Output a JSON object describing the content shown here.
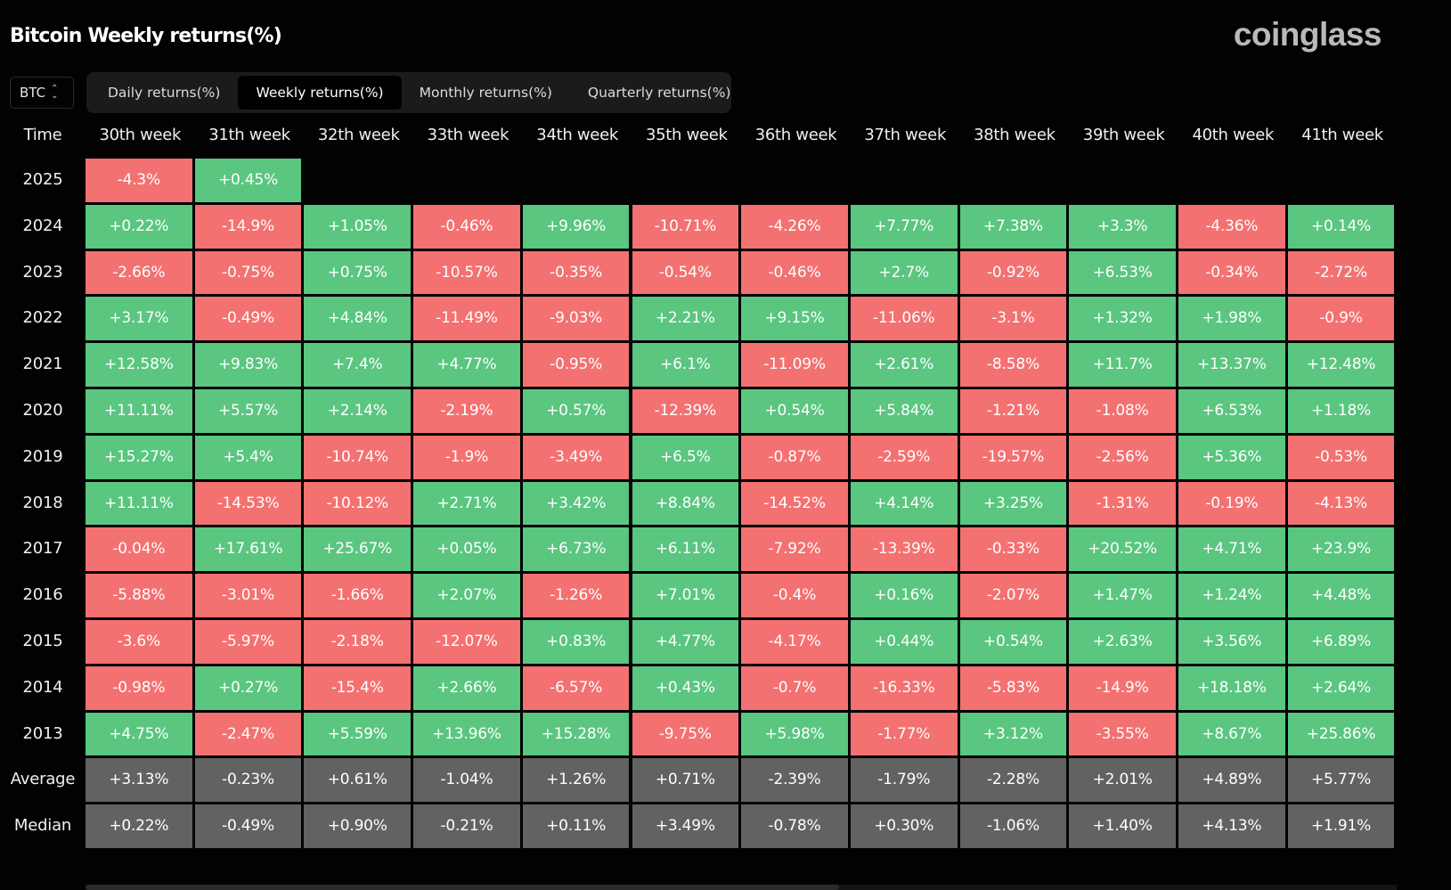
{
  "header": {
    "title": "Bitcoin Weekly returns(%)",
    "logo": "coinglass"
  },
  "coin_select": {
    "value": "BTC",
    "icon": "up-down-chevron-icon"
  },
  "tabs": [
    {
      "label": "Daily returns(%)",
      "active": false
    },
    {
      "label": "Weekly returns(%)",
      "active": true
    },
    {
      "label": "Monthly returns(%)",
      "active": false
    },
    {
      "label": "Quarterly returns(%)",
      "active": false
    }
  ],
  "colors": {
    "positive": "#5ac680",
    "negative": "#f47171",
    "summary": "#626262",
    "background": "#020202"
  },
  "chart_data": {
    "type": "heatmap",
    "title": "Bitcoin Weekly returns(%)",
    "corner_label": "Time",
    "columns": [
      "30th week",
      "31th week",
      "32th week",
      "33th week",
      "34th week",
      "35th week",
      "36th week",
      "37th week",
      "38th week",
      "39th week",
      "40th week",
      "41th week"
    ],
    "rows": [
      {
        "label": "2025",
        "values": [
          "-4.3%",
          "+0.45%",
          null,
          null,
          null,
          null,
          null,
          null,
          null,
          null,
          null,
          null
        ]
      },
      {
        "label": "2024",
        "values": [
          "+0.22%",
          "-14.9%",
          "+1.05%",
          "-0.46%",
          "+9.96%",
          "-10.71%",
          "-4.26%",
          "+7.77%",
          "+7.38%",
          "+3.3%",
          "-4.36%",
          "+0.14%"
        ]
      },
      {
        "label": "2023",
        "values": [
          "-2.66%",
          "-0.75%",
          "+0.75%",
          "-10.57%",
          "-0.35%",
          "-0.54%",
          "-0.46%",
          "+2.7%",
          "-0.92%",
          "+6.53%",
          "-0.34%",
          "-2.72%"
        ]
      },
      {
        "label": "2022",
        "values": [
          "+3.17%",
          "-0.49%",
          "+4.84%",
          "-11.49%",
          "-9.03%",
          "+2.21%",
          "+9.15%",
          "-11.06%",
          "-3.1%",
          "+1.32%",
          "+1.98%",
          "-0.9%"
        ]
      },
      {
        "label": "2021",
        "values": [
          "+12.58%",
          "+9.83%",
          "+7.4%",
          "+4.77%",
          "-0.95%",
          "+6.1%",
          "-11.09%",
          "+2.61%",
          "-8.58%",
          "+11.7%",
          "+13.37%",
          "+12.48%"
        ]
      },
      {
        "label": "2020",
        "values": [
          "+11.11%",
          "+5.57%",
          "+2.14%",
          "-2.19%",
          "+0.57%",
          "-12.39%",
          "+0.54%",
          "+5.84%",
          "-1.21%",
          "-1.08%",
          "+6.53%",
          "+1.18%"
        ]
      },
      {
        "label": "2019",
        "values": [
          "+15.27%",
          "+5.4%",
          "-10.74%",
          "-1.9%",
          "-3.49%",
          "+6.5%",
          "-0.87%",
          "-2.59%",
          "-19.57%",
          "-2.56%",
          "+5.36%",
          "-0.53%"
        ]
      },
      {
        "label": "2018",
        "values": [
          "+11.11%",
          "-14.53%",
          "-10.12%",
          "+2.71%",
          "+3.42%",
          "+8.84%",
          "-14.52%",
          "+4.14%",
          "+3.25%",
          "-1.31%",
          "-0.19%",
          "-4.13%"
        ]
      },
      {
        "label": "2017",
        "values": [
          "-0.04%",
          "+17.61%",
          "+25.67%",
          "+0.05%",
          "+6.73%",
          "+6.11%",
          "-7.92%",
          "-13.39%",
          "-0.33%",
          "+20.52%",
          "+4.71%",
          "+23.9%"
        ]
      },
      {
        "label": "2016",
        "values": [
          "-5.88%",
          "-3.01%",
          "-1.66%",
          "+2.07%",
          "-1.26%",
          "+7.01%",
          "-0.4%",
          "+0.16%",
          "-2.07%",
          "+1.47%",
          "+1.24%",
          "+4.48%"
        ]
      },
      {
        "label": "2015",
        "values": [
          "-3.6%",
          "-5.97%",
          "-2.18%",
          "-12.07%",
          "+0.83%",
          "+4.77%",
          "-4.17%",
          "+0.44%",
          "+0.54%",
          "+2.63%",
          "+3.56%",
          "+6.89%"
        ]
      },
      {
        "label": "2014",
        "values": [
          "-0.98%",
          "+0.27%",
          "-15.4%",
          "+2.66%",
          "-6.57%",
          "+0.43%",
          "-0.7%",
          "-16.33%",
          "-5.83%",
          "-14.9%",
          "+18.18%",
          "+2.64%"
        ]
      },
      {
        "label": "2013",
        "values": [
          "+4.75%",
          "-2.47%",
          "+5.59%",
          "+13.96%",
          "+15.28%",
          "-9.75%",
          "+5.98%",
          "-1.77%",
          "+3.12%",
          "-3.55%",
          "+8.67%",
          "+25.86%"
        ]
      }
    ],
    "summary_rows": [
      {
        "label": "Average",
        "values": [
          "+3.13%",
          "-0.23%",
          "+0.61%",
          "-1.04%",
          "+1.26%",
          "+0.71%",
          "-2.39%",
          "-1.79%",
          "-2.28%",
          "+2.01%",
          "+4.89%",
          "+5.77%"
        ]
      },
      {
        "label": "Median",
        "values": [
          "+0.22%",
          "-0.49%",
          "+0.90%",
          "-0.21%",
          "+0.11%",
          "+3.49%",
          "-0.78%",
          "+0.30%",
          "-1.06%",
          "+1.40%",
          "+4.13%",
          "+1.91%"
        ]
      }
    ]
  }
}
